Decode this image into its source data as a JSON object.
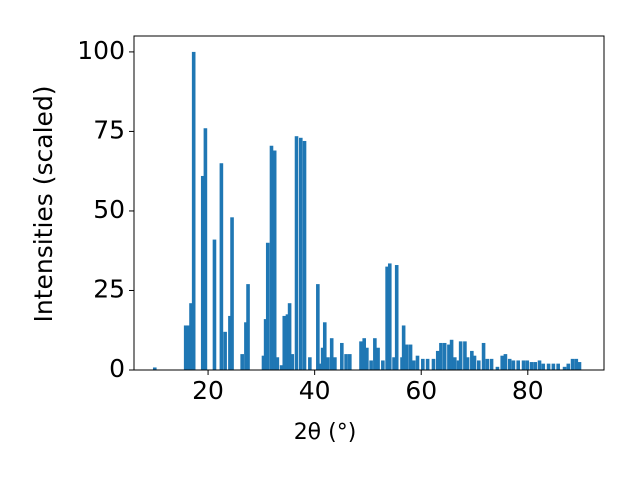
{
  "chart_data": {
    "type": "bar",
    "xlabel": "2θ (°)",
    "ylabel": "Intensities (scaled)",
    "color": "#1f77b4",
    "xlim": [
      6.1,
      94.3
    ],
    "ylim": [
      0,
      105
    ],
    "xticks": [
      20,
      40,
      60,
      80
    ],
    "yticks": [
      0,
      25,
      50,
      75,
      100
    ],
    "x": [
      10,
      15.8,
      16.3,
      16.8,
      17.3,
      19.0,
      19.5,
      21.2,
      22.5,
      23.2,
      24.1,
      24.5,
      26.4,
      27.1,
      27.5,
      30.4,
      30.8,
      31.2,
      31.9,
      32.5,
      33.0,
      33.8,
      34.3,
      34.9,
      35.3,
      35.8,
      36.6,
      37.4,
      38.1,
      39.1,
      40.6,
      40.9,
      41.5,
      41.9,
      42.5,
      43.2,
      43.8,
      45.1,
      45.9,
      46.6,
      48.7,
      49.3,
      49.8,
      50.6,
      51.3,
      51.9,
      52.8,
      53.6,
      54.1,
      54.9,
      55.4,
      56.4,
      56.7,
      57.3,
      58.0,
      58.6,
      59.3,
      60.3,
      61.2,
      62.3,
      63.1,
      63.7,
      64.4,
      65.2,
      65.7,
      66.3,
      67.0,
      67.4,
      68.2,
      68.7,
      69.5,
      70.0,
      70.8,
      71.7,
      72.4,
      73.2,
      74.3,
      75.2,
      75.8,
      76.6,
      77.3,
      78.2,
      79.2,
      79.9,
      80.7,
      81.4,
      82.2,
      82.9,
      83.9,
      84.8,
      85.7,
      86.9,
      87.6,
      88.4,
      89.1,
      89.7
    ],
    "values": [
      0.8,
      14,
      14,
      21,
      100,
      61,
      76,
      41,
      65,
      12,
      17,
      48,
      5,
      15,
      27,
      4.5,
      16,
      40,
      70.5,
      69,
      4,
      1.5,
      17,
      17.5,
      21,
      5,
      73.5,
      73,
      72,
      4,
      27,
      2,
      7,
      15,
      4,
      10,
      4,
      8.5,
      5,
      5,
      9,
      10,
      7,
      3,
      10,
      7,
      3,
      32.5,
      33.5,
      4,
      33,
      4,
      14,
      8,
      8,
      3,
      4.5,
      3.5,
      3.5,
      3.5,
      6,
      8.5,
      8.5,
      8,
      9.5,
      4,
      3,
      9,
      9,
      4,
      6,
      4.5,
      3,
      8.5,
      3.5,
      3.5,
      1,
      4.5,
      5,
      3.5,
      3,
      3,
      3,
      3,
      2.5,
      2.5,
      3,
      2,
      2,
      2,
      2,
      1,
      2,
      3.5,
      3.5,
      2.5
    ]
  }
}
